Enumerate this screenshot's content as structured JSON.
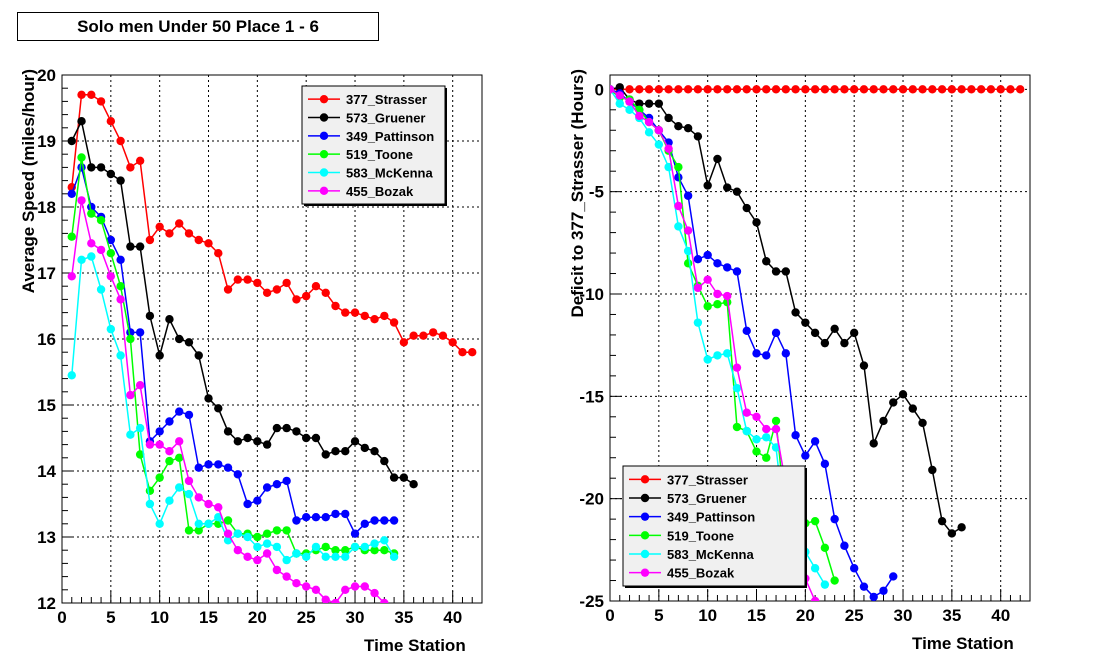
{
  "title": "Solo men Under 50 Place 1 - 6",
  "colors": {
    "377_Strasser": "#ff0000",
    "573_Gruener": "#000000",
    "349_Pattinson": "#0000ff",
    "519_Toone": "#00ff00",
    "583_McKenna": "#00ffff",
    "455_Bozak": "#ff00ff"
  },
  "chart_data": [
    {
      "type": "line",
      "title": "",
      "xlabel": "Time Station",
      "ylabel": "Average Speed (miles/hour)",
      "xlim": [
        0,
        43
      ],
      "ylim": [
        12,
        20
      ],
      "xticks": [
        0,
        5,
        10,
        15,
        20,
        25,
        30,
        35,
        40
      ],
      "yticks": [
        12,
        13,
        14,
        15,
        16,
        17,
        18,
        19,
        20
      ],
      "grid": true,
      "legend_position": "top-right",
      "series": [
        {
          "name": "377_Strasser",
          "x": [
            1,
            2,
            3,
            4,
            5,
            6,
            7,
            8,
            9,
            10,
            11,
            12,
            13,
            14,
            15,
            16,
            17,
            18,
            19,
            20,
            21,
            22,
            23,
            24,
            25,
            26,
            27,
            28,
            29,
            30,
            31,
            32,
            33,
            34,
            35,
            36,
            37,
            38,
            39,
            40,
            41,
            42
          ],
          "y": [
            18.3,
            19.7,
            19.7,
            19.6,
            19.3,
            19.0,
            18.6,
            18.7,
            17.5,
            17.7,
            17.6,
            17.75,
            17.6,
            17.5,
            17.45,
            17.3,
            16.75,
            16.9,
            16.9,
            16.85,
            16.7,
            16.75,
            16.85,
            16.6,
            16.65,
            16.8,
            16.7,
            16.5,
            16.4,
            16.4,
            16.35,
            16.3,
            16.35,
            16.25,
            15.95,
            16.05,
            16.05,
            16.1,
            16.05,
            15.95,
            15.8,
            15.8
          ]
        },
        {
          "name": "573_Gruener",
          "x": [
            1,
            2,
            3,
            4,
            5,
            6,
            7,
            8,
            9,
            10,
            11,
            12,
            13,
            14,
            15,
            16,
            17,
            18,
            19,
            20,
            21,
            22,
            23,
            24,
            25,
            26,
            27,
            28,
            29,
            30,
            31,
            32,
            33,
            34,
            35,
            36
          ],
          "y": [
            19.0,
            19.3,
            18.6,
            18.6,
            18.5,
            18.4,
            17.4,
            17.4,
            16.35,
            15.75,
            16.3,
            16.0,
            15.95,
            15.75,
            15.1,
            14.95,
            14.6,
            14.45,
            14.5,
            14.45,
            14.4,
            14.65,
            14.65,
            14.6,
            14.5,
            14.5,
            14.25,
            14.3,
            14.3,
            14.45,
            14.35,
            14.3,
            14.15,
            13.9,
            13.9,
            13.8
          ]
        },
        {
          "name": "349_Pattinson",
          "x": [
            1,
            2,
            3,
            4,
            5,
            6,
            7,
            8,
            9,
            10,
            11,
            12,
            13,
            14,
            15,
            16,
            17,
            18,
            19,
            20,
            21,
            22,
            23,
            24,
            25,
            26,
            27,
            28,
            29,
            30,
            31,
            32,
            33,
            34
          ],
          "y": [
            18.2,
            18.6,
            18.0,
            17.85,
            17.5,
            17.2,
            16.1,
            16.1,
            14.45,
            14.6,
            14.75,
            14.9,
            14.85,
            14.05,
            14.1,
            14.1,
            14.05,
            13.95,
            13.5,
            13.55,
            13.75,
            13.8,
            13.85,
            13.25,
            13.3,
            13.3,
            13.3,
            13.35,
            13.35,
            13.05,
            13.2,
            13.25,
            13.25,
            13.25
          ]
        },
        {
          "name": "519_Toone",
          "x": [
            1,
            2,
            3,
            4,
            5,
            6,
            7,
            8,
            9,
            10,
            11,
            12,
            13,
            14,
            15,
            16,
            17,
            18,
            19,
            20,
            21,
            22,
            23,
            24,
            25,
            26,
            27,
            28,
            29,
            30,
            31,
            32,
            33,
            34
          ],
          "y": [
            17.55,
            18.75,
            17.9,
            17.8,
            17.3,
            16.8,
            16.0,
            14.25,
            13.7,
            13.9,
            14.15,
            14.2,
            13.1,
            13.1,
            13.2,
            13.2,
            13.25,
            13.05,
            13.05,
            13.0,
            13.05,
            13.1,
            13.1,
            12.75,
            12.75,
            12.8,
            12.85,
            12.8,
            12.8,
            12.85,
            12.8,
            12.8,
            12.8,
            12.75
          ]
        },
        {
          "name": "583_McKenna",
          "x": [
            1,
            2,
            3,
            4,
            5,
            6,
            7,
            8,
            9,
            10,
            11,
            12,
            13,
            14,
            15,
            16,
            17,
            18,
            19,
            20,
            21,
            22,
            23,
            24,
            25,
            26,
            27,
            28,
            29,
            30,
            31,
            32,
            33,
            34
          ],
          "y": [
            15.45,
            17.2,
            17.25,
            16.75,
            16.15,
            15.75,
            14.55,
            14.65,
            13.5,
            13.2,
            13.55,
            13.75,
            13.65,
            13.2,
            13.2,
            13.3,
            12.95,
            13.05,
            13.0,
            12.85,
            12.9,
            12.85,
            12.65,
            12.75,
            12.7,
            12.85,
            12.7,
            12.7,
            12.7,
            12.85,
            12.85,
            12.9,
            12.95,
            12.7
          ]
        },
        {
          "name": "455_Bozak",
          "x": [
            1,
            2,
            3,
            4,
            5,
            6,
            7,
            8,
            9,
            10,
            11,
            12,
            13,
            14,
            15,
            16,
            17,
            18,
            19,
            20,
            21,
            22,
            23,
            24,
            25,
            26,
            27,
            28,
            29,
            30,
            31,
            32,
            33
          ],
          "y": [
            16.95,
            18.1,
            17.45,
            17.35,
            16.95,
            16.6,
            15.15,
            15.3,
            14.4,
            14.4,
            14.3,
            14.45,
            13.85,
            13.6,
            13.5,
            13.45,
            13.05,
            12.8,
            12.7,
            12.65,
            12.75,
            12.5,
            12.4,
            12.3,
            12.25,
            12.2,
            12.05,
            12.0,
            12.2,
            12.25,
            12.25,
            12.15,
            12.0
          ]
        }
      ]
    },
    {
      "type": "line",
      "title": "",
      "xlabel": "Time Station",
      "ylabel": "Deficit to 377_Strasser (Hours)",
      "xlim": [
        0,
        43
      ],
      "ylim": [
        -25,
        0.7
      ],
      "xticks": [
        0,
        5,
        10,
        15,
        20,
        25,
        30,
        35,
        40
      ],
      "yticks": [
        0,
        -5,
        -10,
        -15,
        -20,
        -25
      ],
      "grid": true,
      "legend_position": "bottom-left",
      "series": [
        {
          "name": "377_Strasser",
          "x": [
            0,
            1,
            2,
            3,
            4,
            5,
            6,
            7,
            8,
            9,
            10,
            11,
            12,
            13,
            14,
            15,
            16,
            17,
            18,
            19,
            20,
            21,
            22,
            23,
            24,
            25,
            26,
            27,
            28,
            29,
            30,
            31,
            32,
            33,
            34,
            35,
            36,
            37,
            38,
            39,
            40,
            41,
            42
          ],
          "y": [
            0,
            0,
            0,
            0,
            0,
            0,
            0,
            0,
            0,
            0,
            0,
            0,
            0,
            0,
            0,
            0,
            0,
            0,
            0,
            0,
            0,
            0,
            0,
            0,
            0,
            0,
            0,
            0,
            0,
            0,
            0,
            0,
            0,
            0,
            0,
            0,
            0,
            0,
            0,
            0,
            0,
            0,
            0
          ]
        },
        {
          "name": "573_Gruener",
          "x": [
            0,
            1,
            2,
            3,
            4,
            5,
            6,
            7,
            8,
            9,
            10,
            11,
            12,
            13,
            14,
            15,
            16,
            17,
            18,
            19,
            20,
            21,
            22,
            23,
            24,
            25,
            26,
            27,
            28,
            29,
            30,
            31,
            32,
            33,
            34,
            35,
            36
          ],
          "y": [
            0,
            0.1,
            -0.5,
            -0.7,
            -0.7,
            -0.7,
            -1.4,
            -1.8,
            -1.9,
            -2.3,
            -4.7,
            -3.4,
            -4.8,
            -5.0,
            -5.8,
            -6.5,
            -8.4,
            -8.9,
            -8.9,
            -10.9,
            -11.4,
            -11.9,
            -12.4,
            -11.7,
            -12.4,
            -11.9,
            -13.5,
            -17.3,
            -16.2,
            -15.3,
            -14.9,
            -15.6,
            -16.3,
            -18.6,
            -21.1,
            -21.7,
            -21.4
          ]
        },
        {
          "name": "349_Pattinson",
          "x": [
            0,
            1,
            2,
            3,
            4,
            5,
            6,
            7,
            8,
            9,
            10,
            11,
            12,
            13,
            14,
            15,
            16,
            17,
            18,
            19,
            20,
            21,
            22,
            23,
            24,
            25,
            26,
            27,
            28,
            29
          ],
          "y": [
            0,
            -0.2,
            -0.6,
            -1.0,
            -1.4,
            -2.0,
            -2.6,
            -4.3,
            -5.2,
            -8.3,
            -8.1,
            -8.5,
            -8.7,
            -8.9,
            -11.8,
            -12.9,
            -13.0,
            -11.9,
            -12.9,
            -16.9,
            -17.9,
            -17.2,
            -18.3,
            -21.0,
            -22.3,
            -23.4,
            -24.3,
            -24.8,
            -24.5,
            -23.8
          ]
        },
        {
          "name": "519_Toone",
          "x": [
            0,
            1,
            2,
            3,
            4,
            5,
            6,
            7,
            8,
            9,
            10,
            11,
            12,
            13,
            14,
            15,
            16,
            17,
            18,
            19,
            20,
            21,
            22,
            23
          ],
          "y": [
            0,
            -0.4,
            -0.5,
            -1.0,
            -1.6,
            -2.0,
            -3.0,
            -3.8,
            -8.5,
            -9.6,
            -10.6,
            -10.5,
            -10.4,
            -16.5,
            -16.7,
            -17.7,
            -18.0,
            -16.2,
            -20.9,
            -21.3,
            -21.2,
            -21.1,
            -22.4,
            -24.0
          ]
        },
        {
          "name": "583_McKenna",
          "x": [
            0,
            1,
            2,
            3,
            4,
            5,
            6,
            7,
            8,
            9,
            10,
            11,
            12,
            13,
            14,
            15,
            16,
            17,
            18,
            19,
            20,
            21,
            22
          ],
          "y": [
            0,
            -0.7,
            -1.0,
            -1.4,
            -2.1,
            -2.7,
            -3.8,
            -6.7,
            -7.9,
            -11.4,
            -13.2,
            -13.0,
            -12.9,
            -14.6,
            -16.7,
            -17.1,
            -17.0,
            -17.5,
            -21.6,
            -22.4,
            -22.6,
            -23.4,
            -24.2
          ]
        },
        {
          "name": "455_Bozak",
          "x": [
            0,
            1,
            2,
            3,
            4,
            5,
            6,
            7,
            8,
            9,
            10,
            11,
            12,
            13,
            14,
            15,
            16,
            17,
            18,
            19,
            20,
            21
          ],
          "y": [
            0,
            -0.3,
            -0.6,
            -1.3,
            -1.6,
            -2.0,
            -2.9,
            -5.7,
            -6.9,
            -9.7,
            -9.3,
            -10.0,
            -10.1,
            -13.6,
            -15.8,
            -16.0,
            -16.6,
            -16.6,
            -19.3,
            -22.8,
            -23.9,
            -25.0
          ]
        }
      ]
    }
  ]
}
